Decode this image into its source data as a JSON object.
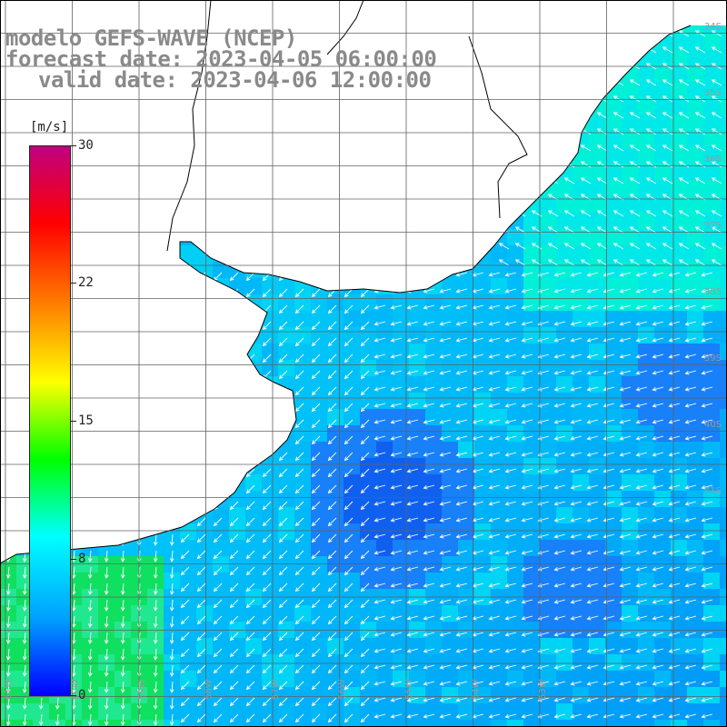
{
  "title": {
    "line1": "modelo GEFS-WAVE (NCEP)",
    "line2": "forecast date: 2023-04-05 06:00:00",
    "line3": "valid date: 2023-04-06 12:00:00"
  },
  "colorbar": {
    "unit": "[m/s]",
    "ticks": [
      "30",
      "22",
      "15",
      "8",
      "0"
    ],
    "colors": [
      "#0000ff",
      "#00a0ff",
      "#00ffff",
      "#00ff00",
      "#ffff00",
      "#ff8000",
      "#ff0000",
      "#c00080"
    ]
  },
  "map": {
    "land_color": "#ffffff",
    "coast_color": "#000000",
    "grid_color": "#606060",
    "lat_labels": [
      "34S",
      "35S",
      "36S",
      "37S",
      "38S",
      "39S",
      "40S",
      "41S"
    ],
    "lon_labels": [
      "61W",
      "60W",
      "59W",
      "58W",
      "57W",
      "56W",
      "55W",
      "54W",
      "53W"
    ]
  }
}
